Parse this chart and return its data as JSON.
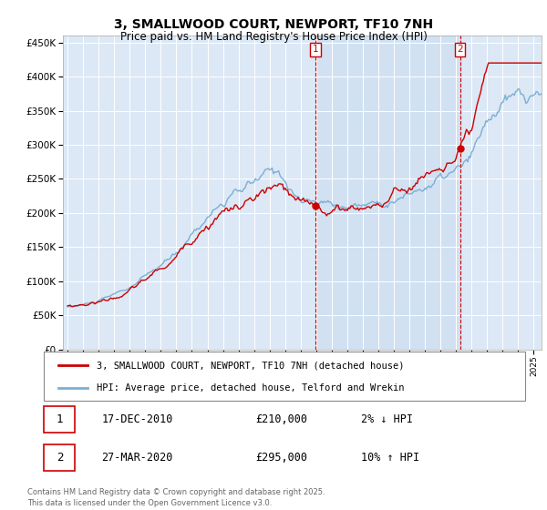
{
  "title": "3, SMALLWOOD COURT, NEWPORT, TF10 7NH",
  "subtitle": "Price paid vs. HM Land Registry's House Price Index (HPI)",
  "ylim": [
    0,
    460000
  ],
  "yticks": [
    0,
    50000,
    100000,
    150000,
    200000,
    250000,
    300000,
    350000,
    400000,
    450000
  ],
  "background_color": "#dce8f5",
  "shade_color": "#dce8f5",
  "grid_color": "#ffffff",
  "red_color": "#cc0000",
  "blue_color": "#7bafd4",
  "sale1_date": "17-DEC-2010",
  "sale1_price": 210000,
  "sale1_pct": "2% ↓ HPI",
  "sale2_date": "27-MAR-2020",
  "sale2_price": 295000,
  "sale2_pct": "10% ↑ HPI",
  "legend1": "3, SMALLWOOD COURT, NEWPORT, TF10 7NH (detached house)",
  "legend2": "HPI: Average price, detached house, Telford and Wrekin",
  "footnote": "Contains HM Land Registry data © Crown copyright and database right 2025.\nThis data is licensed under the Open Government Licence v3.0.",
  "sale1_x": 2010.96,
  "sale2_x": 2020.25,
  "sale1_y": 210000,
  "sale2_y": 295000,
  "xlim": [
    1994.7,
    2025.5
  ]
}
